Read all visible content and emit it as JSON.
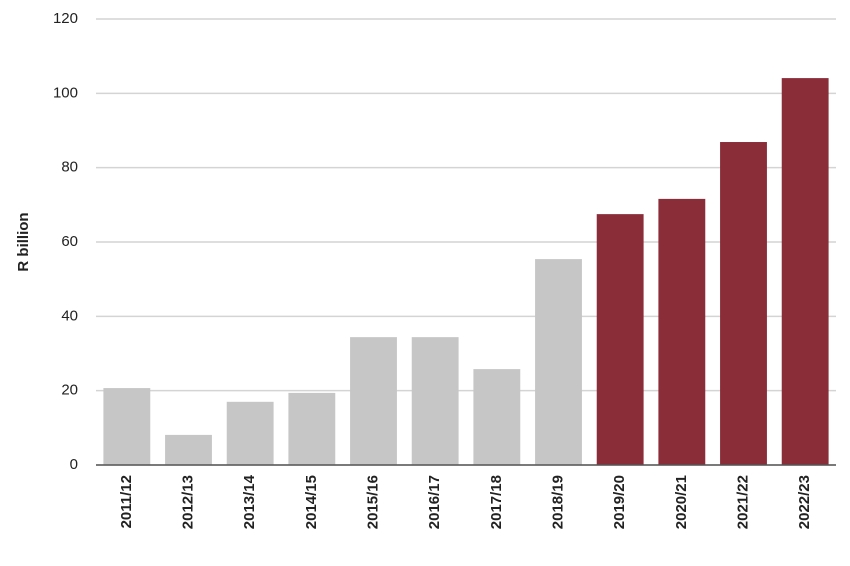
{
  "chart_data": {
    "type": "bar",
    "y_label": "R billion",
    "categories": [
      "2011/12",
      "2012/13",
      "2013/14",
      "2014/15",
      "2015/16",
      "2016/17",
      "2017/18",
      "2018/19",
      "2019/20",
      "2020/21",
      "2021/22",
      "2022/23"
    ],
    "values": [
      20.7,
      8.1,
      17,
      19.4,
      34.4,
      34.4,
      25.8,
      55.4,
      67.5,
      71.6,
      86.9,
      104.1
    ],
    "colors": [
      "#c6c6c6",
      "#c6c6c6",
      "#c6c6c6",
      "#c6c6c6",
      "#c6c6c6",
      "#c6c6c6",
      "#c6c6c6",
      "#c6c6c6",
      "#8a2d39",
      "#8a2d39",
      "#8a2d39",
      "#8a2d39"
    ],
    "ylim": [
      0,
      120
    ],
    "yticks": [
      0,
      20,
      40,
      60,
      80,
      100,
      120
    ],
    "grid": true
  }
}
